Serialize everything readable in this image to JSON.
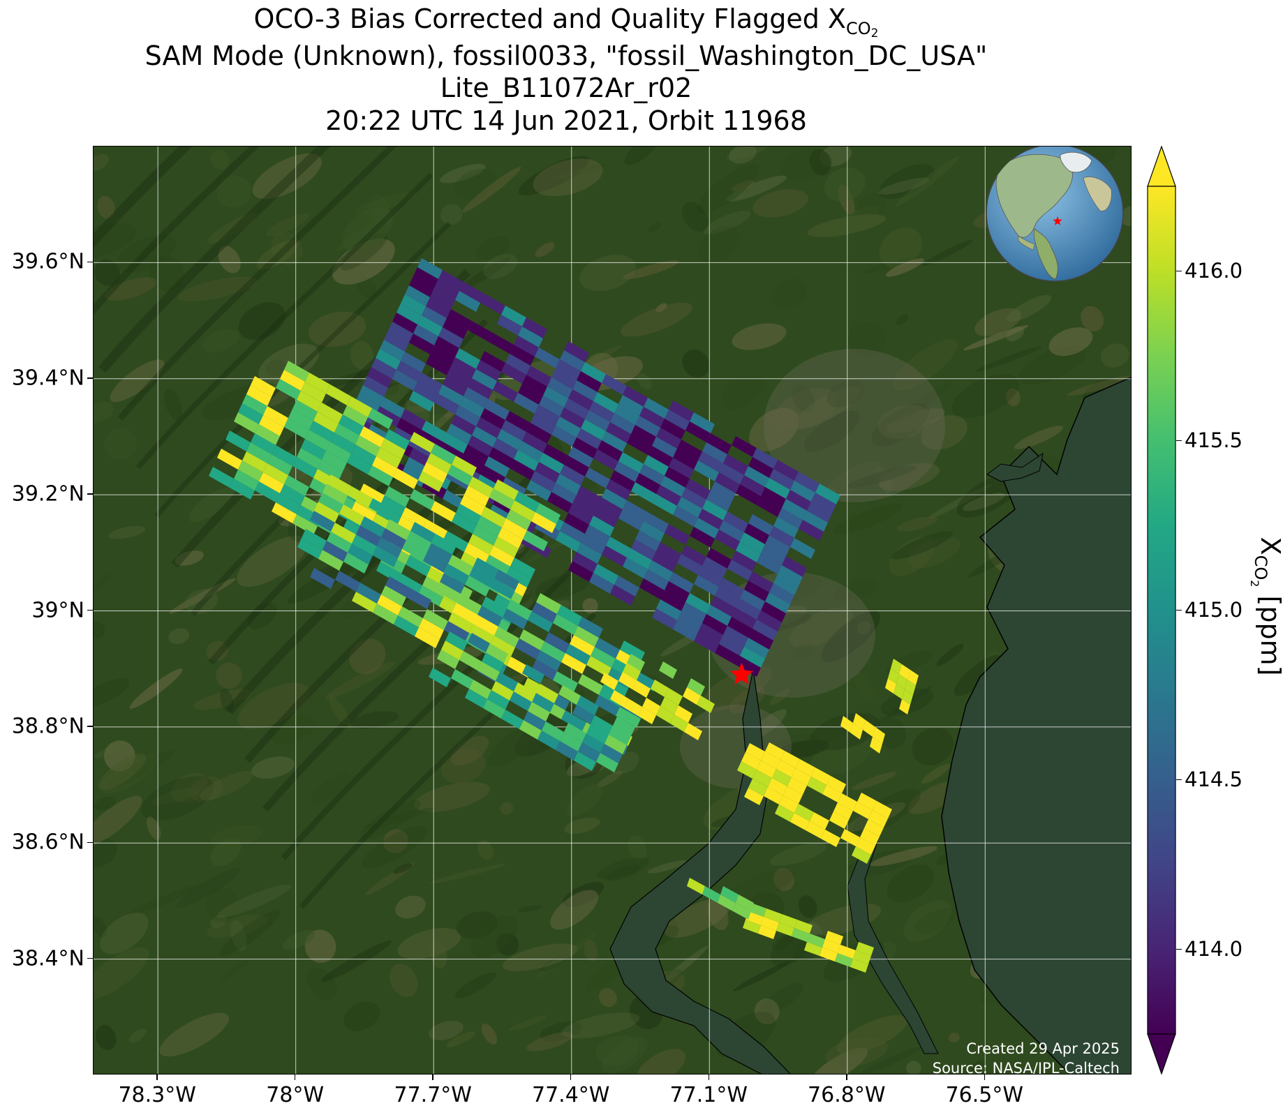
{
  "title": {
    "line1_prefix": "OCO-3 Bias Corrected and Quality Flagged X",
    "line1_subscript": "CO",
    "line1_subscript2": "2",
    "line2": "SAM Mode (Unknown), fossil0033, \"fossil_Washington_DC_USA\"",
    "line3": "Lite_B11072Ar_r02",
    "line4": "20:22 UTC 14 Jun 2021, Orbit 11968"
  },
  "map": {
    "lon_range": [
      -78.44,
      -76.18
    ],
    "lat_range": [
      38.2,
      39.8
    ],
    "lon_ticks": [
      {
        "value": -78.3,
        "label": "78.3°W"
      },
      {
        "value": -78.0,
        "label": "78°W"
      },
      {
        "value": -77.7,
        "label": "77.7°W"
      },
      {
        "value": -77.4,
        "label": "77.4°W"
      },
      {
        "value": -77.1,
        "label": "77.1°W"
      },
      {
        "value": -76.8,
        "label": "76.8°W"
      },
      {
        "value": -76.5,
        "label": "76.5°W"
      }
    ],
    "lat_ticks": [
      {
        "value": 39.6,
        "label": "39.6°N"
      },
      {
        "value": 39.4,
        "label": "39.4°N"
      },
      {
        "value": 39.2,
        "label": "39.2°N"
      },
      {
        "value": 39.0,
        "label": "39°N"
      },
      {
        "value": 38.8,
        "label": "38.8°N"
      },
      {
        "value": 38.6,
        "label": "38.6°N"
      },
      {
        "value": 38.4,
        "label": "38.4°N"
      }
    ],
    "target": {
      "name": "fossil_Washington_DC_USA",
      "lon": -77.03,
      "lat": 38.89,
      "marker": "star",
      "color": "#ff0000"
    },
    "gridlines": true,
    "inset_globe": {
      "placement": "top-right",
      "marker_color": "#ff0000"
    },
    "colors": {
      "land": "#2f4a1e",
      "water": "#2d4634",
      "coastline": "#000000",
      "gridline": "#ffffff"
    }
  },
  "colorbar": {
    "label_prefix": "X",
    "label_subscript": "CO",
    "label_subscript2": "2",
    "label_suffix": " [ppm]",
    "vmin": 413.75,
    "vmax": 416.25,
    "extend": "both",
    "colormap": "viridis",
    "ticks": [
      {
        "value": 414.0,
        "label": "414.0"
      },
      {
        "value": 414.5,
        "label": "414.5"
      },
      {
        "value": 415.0,
        "label": "415.0"
      },
      {
        "value": 415.5,
        "label": "415.5"
      },
      {
        "value": 416.0,
        "label": "416.0"
      }
    ]
  },
  "credits": {
    "created": "Created 29 Apr 2025",
    "source": "Source: NASA/JPL-Caltech"
  }
}
